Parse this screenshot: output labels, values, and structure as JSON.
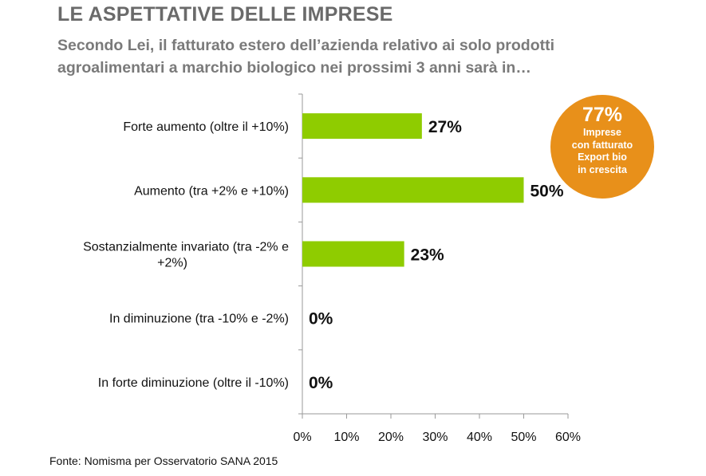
{
  "header": {
    "title": "LE ASPETTATIVE DELLE IMPRESE",
    "subtitle_line1": "Secondo Lei, il fatturato estero dell’azienda relativo ai solo prodotti",
    "subtitle_line2": "agroalimentari a marchio biologico nei prossimi 3 anni sarà in…"
  },
  "badge": {
    "value": "77%",
    "line1": "Imprese",
    "line2": "con fatturato",
    "line3": "Export bio",
    "line4": "in crescita",
    "color": "#e8901a"
  },
  "source": "Fonte: Nomisma per Osservatorio SANA 2015",
  "chart_data": {
    "type": "bar",
    "orientation": "horizontal",
    "title": "",
    "xlabel": "",
    "ylabel": "",
    "categories": [
      [
        "Forte aumento (oltre il +10%)"
      ],
      [
        "Aumento  (tra +2% e +10%)"
      ],
      [
        "Sostanzialmente invariato (tra -2% e",
        "+2%)"
      ],
      [
        "In diminuzione (tra -10% e -2%)"
      ],
      [
        "In forte diminuzione (oltre il -10%)"
      ]
    ],
    "values": [
      27,
      50,
      23,
      0,
      0
    ],
    "data_labels": [
      "27%",
      "50%",
      "23%",
      "0%",
      "0%"
    ],
    "xlim": [
      0,
      60
    ],
    "xticks": [
      0,
      10,
      20,
      30,
      40,
      50,
      60
    ],
    "xtick_labels": [
      "0%",
      "10%",
      "20%",
      "30%",
      "40%",
      "50%",
      "60%"
    ],
    "grid": false,
    "legend": "none",
    "bar_color": "#8fcc00"
  }
}
